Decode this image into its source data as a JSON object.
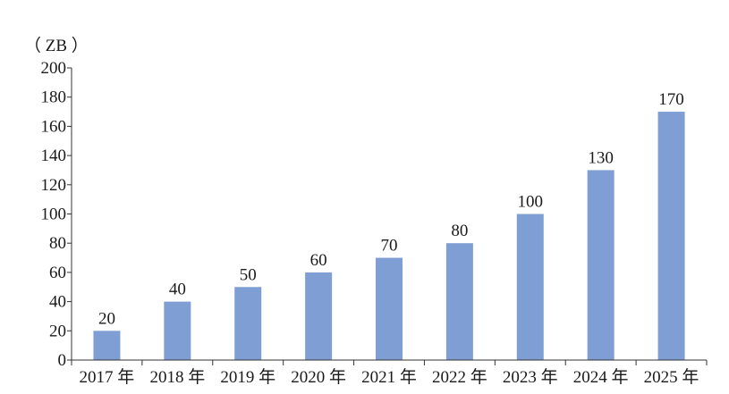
{
  "chart_data": {
    "type": "bar",
    "unit": "（ ZB ）",
    "categories": [
      "2017 年",
      "2018 年",
      "2019 年",
      "2020 年",
      "2021 年",
      "2022 年",
      "2023 年",
      "2024 年",
      "2025 年"
    ],
    "values": [
      20,
      40,
      50,
      60,
      70,
      80,
      100,
      130,
      170
    ],
    "data_labels": [
      "20",
      "40",
      "50",
      "60",
      "70",
      "80",
      "100",
      "130",
      "170"
    ],
    "y_ticks": [
      "0",
      "20",
      "40",
      "60",
      "80",
      "100",
      "120",
      "140",
      "160",
      "180",
      "200"
    ],
    "ylim": [
      0,
      200
    ],
    "title": "",
    "xlabel": "",
    "ylabel": "ZB",
    "grid": false,
    "legend": "none",
    "colors": {
      "bar": "#7f9fd4",
      "axis": "#333333",
      "text": "#1a1a1a"
    }
  }
}
